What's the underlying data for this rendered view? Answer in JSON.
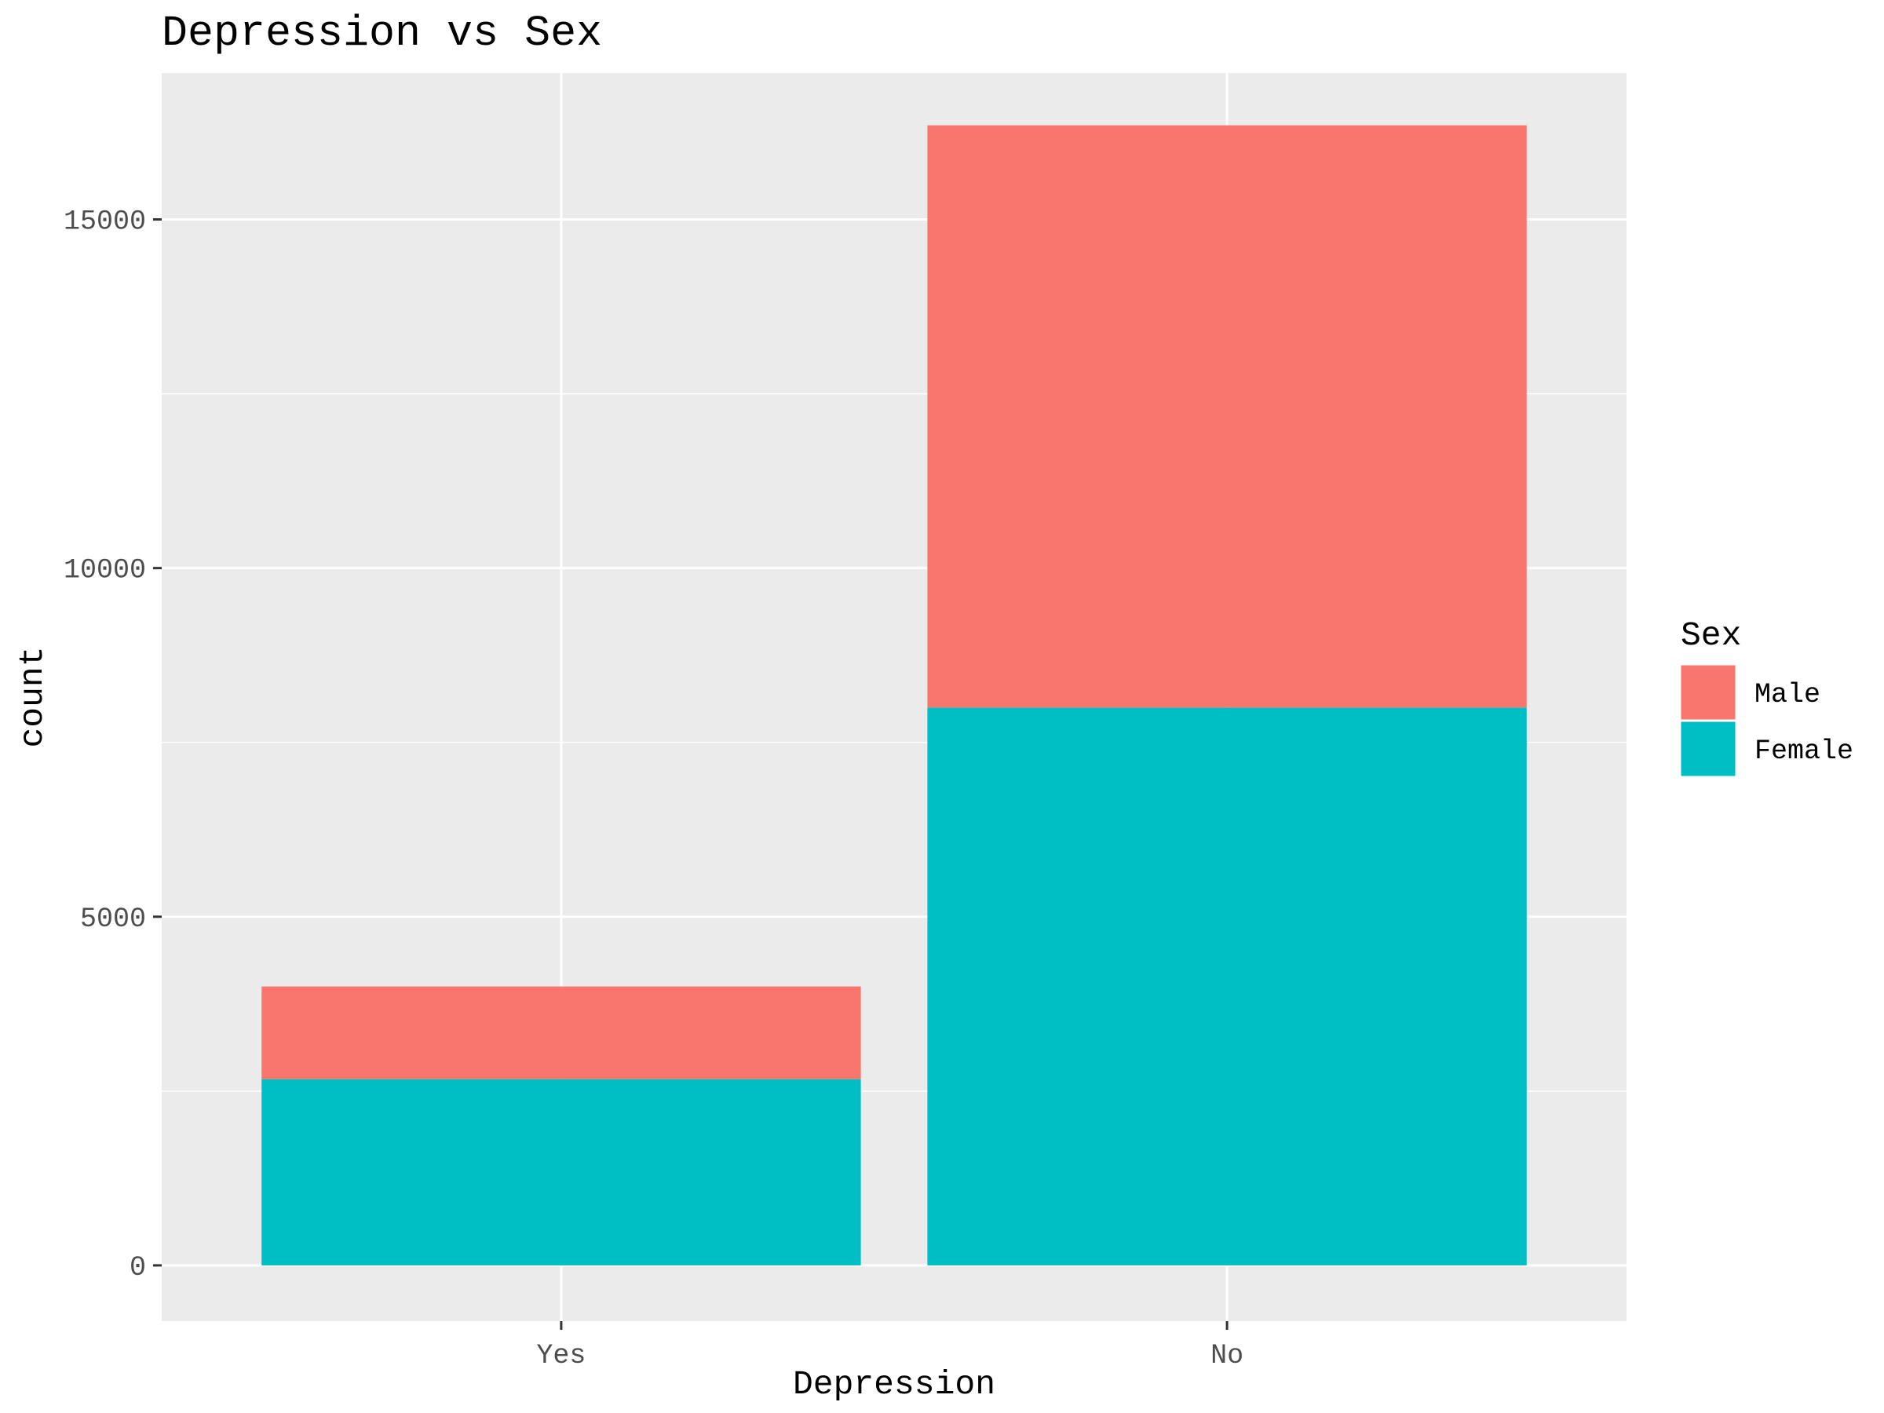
{
  "chart_data": {
    "type": "bar",
    "stacked": true,
    "title": "Depression vs Sex",
    "xlabel": "Depression",
    "ylabel": "count",
    "categories": [
      "Yes",
      "No"
    ],
    "series": [
      {
        "name": "Male",
        "color": "#F8766D",
        "values": [
          1330,
          8350
        ]
      },
      {
        "name": "Female",
        "color": "#00BFC4",
        "values": [
          2670,
          8000
        ]
      }
    ],
    "ylim": [
      -800,
      17100
    ],
    "yticks": [
      0,
      5000,
      10000,
      15000
    ],
    "ytick_labels": [
      "0",
      "5000",
      "10000",
      "15000"
    ],
    "grid": true,
    "panel_background": "#EBEBEB",
    "legend": {
      "title": "Sex",
      "position": "right",
      "entries": [
        "Male",
        "Female"
      ]
    }
  }
}
